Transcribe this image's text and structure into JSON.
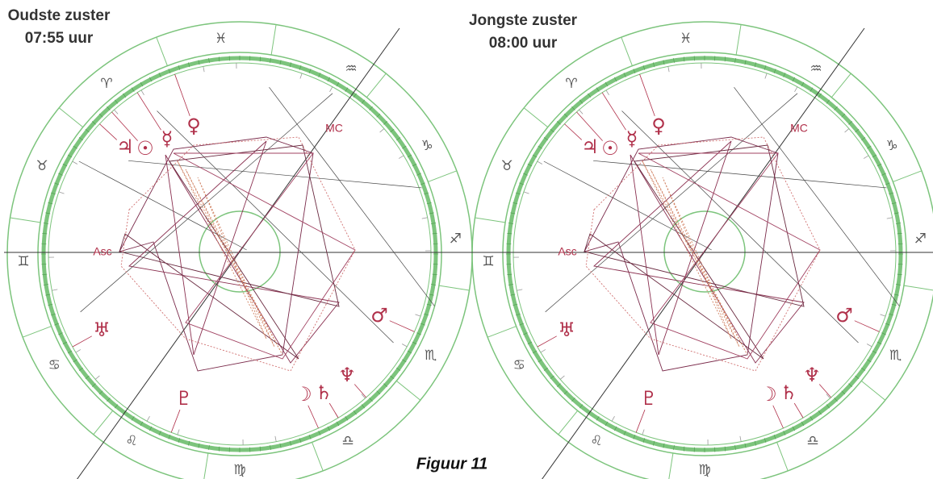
{
  "charts": [
    {
      "title": "Oudste zuster",
      "time": "07:55 uur",
      "asc": "Asc",
      "mc": "MC",
      "signs": [
        "♓",
        "♒",
        "♑",
        "♐",
        "♏",
        "♎",
        "♍",
        "♌",
        "♋",
        "♊",
        "♉",
        "♈"
      ],
      "planets": [
        "♃",
        "☉",
        "☿",
        "♀",
        "♂",
        "♅",
        "♇",
        "☽",
        "♄",
        "♆"
      ]
    },
    {
      "title": "Jongste zuster",
      "time": "08:00 uur",
      "asc": "Asc",
      "mc": "MC",
      "signs": [
        "♓",
        "♒",
        "♑",
        "♐",
        "♏",
        "♎",
        "♍",
        "♌",
        "♋",
        "♊",
        "♉",
        "♈"
      ],
      "planets": [
        "♃",
        "☉",
        "☿",
        "♀",
        "♂",
        "♅",
        "♇",
        "☽",
        "♄",
        "♆"
      ]
    }
  ],
  "caption": "Figuur 11"
}
